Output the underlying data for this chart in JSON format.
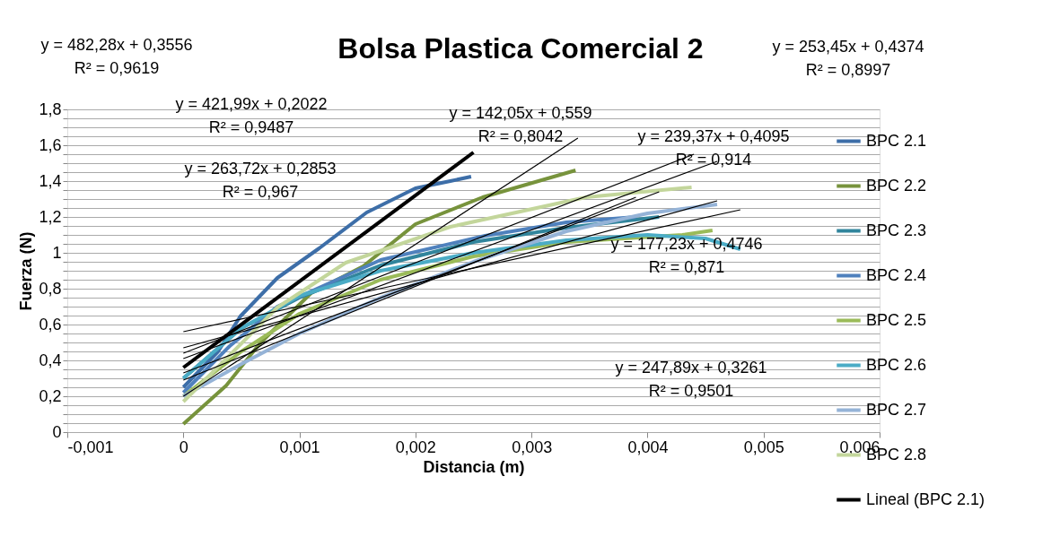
{
  "chart_data": {
    "type": "line",
    "title": "Bolsa Plastica Comercial 2",
    "xlabel": "Distancia (m)",
    "ylabel": "Fuerza (N)",
    "xlim": [
      -0.001,
      0.006
    ],
    "ylim": [
      0,
      1.8
    ],
    "xticks": [
      {
        "value": -0.001,
        "label": "-0,001"
      },
      0,
      {
        "value": 0.001,
        "label": "0,001"
      },
      {
        "value": 0.002,
        "label": "0,002"
      },
      {
        "value": 0.003,
        "label": "0,003"
      },
      {
        "value": 0.004,
        "label": "0,004"
      },
      {
        "value": 0.005,
        "label": "0,005"
      },
      {
        "value": 0.006,
        "label": "0,006"
      }
    ],
    "yticks": [
      0,
      {
        "value": 0.05,
        "label": null
      },
      {
        "value": 0.1,
        "label": null
      },
      {
        "value": 0.15,
        "label": null
      },
      {
        "value": 0.2,
        "label": "0,2"
      },
      {
        "value": 0.25,
        "label": null
      },
      {
        "value": 0.3,
        "label": null
      },
      {
        "value": 0.35,
        "label": null
      },
      {
        "value": 0.4,
        "label": "0,4"
      },
      {
        "value": 0.45,
        "label": null
      },
      {
        "value": 0.5,
        "label": null
      },
      {
        "value": 0.55,
        "label": null
      },
      {
        "value": 0.6,
        "label": "0,6"
      },
      {
        "value": 0.65,
        "label": null
      },
      {
        "value": 0.7,
        "label": null
      },
      {
        "value": 0.75,
        "label": null
      },
      {
        "value": 0.8,
        "label": "0,8"
      },
      {
        "value": 0.85,
        "label": null
      },
      {
        "value": 0.9,
        "label": null
      },
      {
        "value": 0.95,
        "label": null
      },
      1,
      {
        "value": 1.05,
        "label": null
      },
      {
        "value": 1.1,
        "label": null
      },
      {
        "value": 1.15,
        "label": null
      },
      {
        "value": 1.2,
        "label": "1,2"
      },
      {
        "value": 1.25,
        "label": null
      },
      {
        "value": 1.3,
        "label": null
      },
      {
        "value": 1.35,
        "label": null
      },
      {
        "value": 1.4,
        "label": "1,4"
      },
      {
        "value": 1.45,
        "label": null
      },
      {
        "value": 1.5,
        "label": null
      },
      {
        "value": 1.55,
        "label": null
      },
      {
        "value": 1.6,
        "label": "1,6"
      },
      {
        "value": 1.65,
        "label": null
      },
      {
        "value": 1.7,
        "label": null
      },
      {
        "value": 1.75,
        "label": null
      },
      {
        "value": 1.8,
        "label": "1,8"
      }
    ],
    "grid": "y",
    "legend": "right",
    "marker": "none",
    "line_style": "solid",
    "series": [
      {
        "name": "BPC 2.1",
        "color": "#3d6ea8",
        "x": [
          0,
          0.0003,
          0.00049,
          0.00081,
          0.00117,
          0.00158,
          0.002,
          0.0023,
          0.00248
        ],
        "values": [
          0.25,
          0.45,
          0.645,
          0.86,
          1.025,
          1.225,
          1.36,
          1.4,
          1.425
        ]
      },
      {
        "name": "BPC 2.2",
        "color": "#77933c",
        "x": [
          0,
          0.00037,
          0.00066,
          0.0011,
          0.00155,
          0.002,
          0.00258,
          0.00338
        ],
        "values": [
          0.045,
          0.26,
          0.495,
          0.775,
          0.925,
          1.16,
          1.31,
          1.46
        ]
      },
      {
        "name": "BPC 2.3",
        "color": "#31859c",
        "x": [
          0,
          0.0005,
          0.001,
          0.0017,
          0.0025,
          0.0033,
          0.0041
        ],
        "values": [
          0.3,
          0.58,
          0.75,
          0.93,
          1.06,
          1.14,
          1.2
        ]
      },
      {
        "name": "BPC 2.4",
        "color": "#4f81bd",
        "x": [
          0,
          0.0004,
          0.00081,
          0.0017,
          0.0026,
          0.0033,
          0.0039
        ],
        "values": [
          0.22,
          0.48,
          0.7,
          0.96,
          1.095,
          1.17,
          1.2
        ]
      },
      {
        "name": "BPC 2.5",
        "color": "#9bbb59",
        "x": [
          0,
          0.0005,
          0.001,
          0.0017,
          0.0025,
          0.0033,
          0.0043,
          0.00456
        ],
        "values": [
          0.2,
          0.45,
          0.66,
          0.85,
          0.98,
          1.06,
          1.1,
          1.125
        ]
      },
      {
        "name": "BPC 2.6",
        "color": "#4bacc6",
        "x": [
          0,
          0.0005,
          0.001,
          0.0017,
          0.0025,
          0.0033,
          0.004,
          0.0045,
          0.0048
        ],
        "values": [
          0.3,
          0.58,
          0.76,
          0.9,
          1.0,
          1.07,
          1.1,
          1.08,
          1.02
        ]
      },
      {
        "name": "BPC 2.7",
        "color": "#95b3d7",
        "x": [
          0,
          0.0005,
          0.001,
          0.0017,
          0.0025,
          0.0033,
          0.004,
          0.0046
        ],
        "values": [
          0.2,
          0.38,
          0.55,
          0.75,
          0.95,
          1.12,
          1.22,
          1.27
        ]
      },
      {
        "name": "BPC 2.8",
        "color": "#c3d69b",
        "x": [
          0,
          0.00081,
          0.0014,
          0.0023,
          0.00347,
          0.00438
        ],
        "values": [
          0.17,
          0.695,
          0.945,
          1.145,
          1.31,
          1.365
        ]
      },
      {
        "name": "Lineal (BPC 2.1)",
        "color": "#000000",
        "x": [
          0,
          0.0025
        ],
        "values": [
          0.36,
          1.56
        ]
      },
      {
        "color": "#000000",
        "x": [
          0,
          0.0034
        ],
        "values": [
          0.2,
          1.64
        ]
      },
      {
        "color": "#000000",
        "x": [
          0,
          0.0041
        ],
        "values": [
          0.33,
          1.34
        ]
      },
      {
        "color": "#000000",
        "x": [
          0,
          0.0039
        ],
        "values": [
          0.29,
          1.31
        ]
      },
      {
        "color": "#000000",
        "x": [
          0,
          0.0046
        ],
        "values": [
          0.47,
          1.29
        ]
      },
      {
        "color": "#000000",
        "x": [
          0,
          0.0048
        ],
        "values": [
          0.56,
          1.24
        ]
      },
      {
        "color": "#000000",
        "x": [
          0,
          0.0046
        ],
        "values": [
          0.41,
          1.51
        ]
      },
      {
        "color": "#000000",
        "x": [
          0,
          0.0044
        ],
        "values": [
          0.44,
          1.55
        ]
      }
    ],
    "annotations": [
      "y = 482,28x + 0,3556\nR² = 0,9619",
      "y = 421,99x + 0,2022\nR² = 0,9487",
      "y = 263,72x + 0,2853\nR² = 0,967",
      "y = 142,05x + 0,559\nR² = 0,8042",
      "y = 239,37x + 0,4095\nR² = 0,914",
      "y = 177,23x + 0,4746\nR² = 0,871",
      "y = 247,89x + 0,3261\nR² = 0,9501",
      "y = 253,45x + 0,4374\nR² = 0,8997"
    ]
  }
}
